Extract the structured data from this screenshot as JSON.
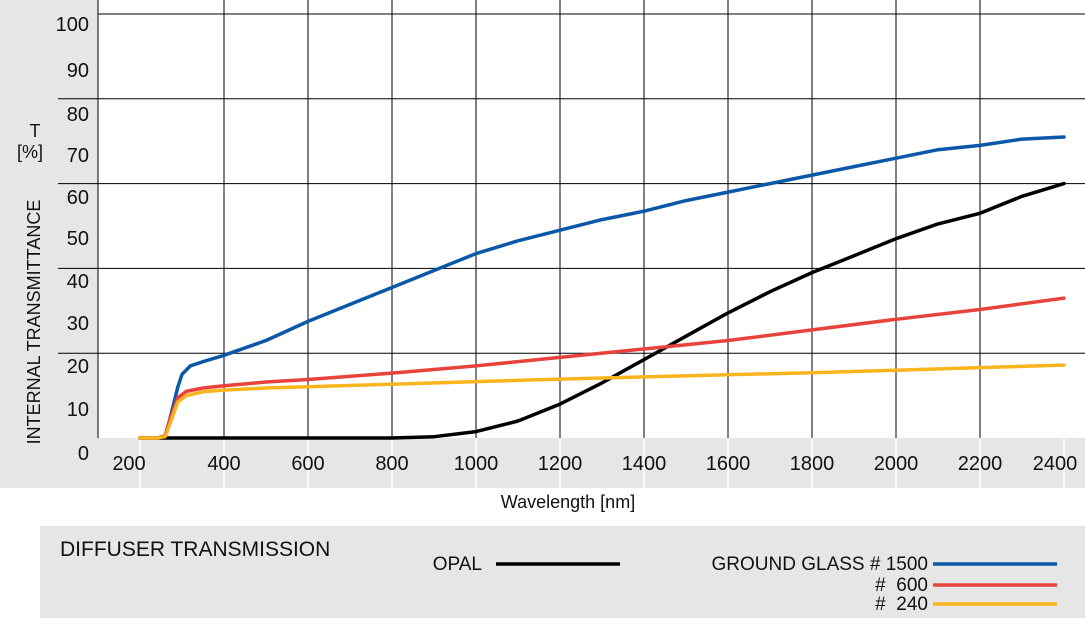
{
  "chart_data": {
    "type": "line",
    "xlabel": "Wavelength [nm]",
    "ylabel": "INTERNAL TRANSMITTANCE",
    "ylabel_symbol": "T",
    "ylabel_unit": "[%]",
    "xlim": [
      200,
      2400
    ],
    "ylim": [
      0,
      100
    ],
    "xticks": [
      200,
      400,
      600,
      800,
      1000,
      1200,
      1400,
      1600,
      1800,
      2000,
      2200,
      2400
    ],
    "yticks": [
      0,
      10,
      20,
      30,
      40,
      50,
      60,
      70,
      80,
      90,
      100
    ],
    "grid": true,
    "series": [
      {
        "name": "OPAL",
        "color": "#000000",
        "x": [
          200,
          250,
          300,
          400,
          600,
          800,
          900,
          1000,
          1100,
          1200,
          1300,
          1400,
          1500,
          1600,
          1700,
          1800,
          1900,
          2000,
          2100,
          2200,
          2300,
          2400
        ],
        "y": [
          0,
          0,
          0,
          0,
          0,
          0,
          0.3,
          1.5,
          4,
          8,
          13,
          18.5,
          24,
          29.5,
          34.5,
          39,
          43,
          47,
          50.5,
          53,
          57,
          60
        ]
      },
      {
        "name": "GROUND GLASS # 1500",
        "color": "#0b58a8",
        "x": [
          200,
          240,
          260,
          270,
          290,
          300,
          320,
          350,
          400,
          500,
          600,
          700,
          800,
          900,
          1000,
          1100,
          1200,
          1300,
          1400,
          1500,
          1600,
          1700,
          1800,
          1900,
          2000,
          2100,
          2200,
          2300,
          2400
        ],
        "y": [
          0,
          0,
          0.5,
          4,
          12,
          15,
          17,
          18,
          19.5,
          23,
          27.5,
          31.5,
          35.5,
          39.5,
          43.5,
          46.5,
          49,
          51.5,
          53.5,
          56,
          58,
          60,
          62,
          64,
          66,
          68,
          69,
          70.5,
          71
        ]
      },
      {
        "name": "# 600",
        "color": "#e8433a",
        "x": [
          200,
          240,
          260,
          270,
          290,
          310,
          350,
          400,
          500,
          600,
          800,
          1000,
          1200,
          1400,
          1600,
          1800,
          2000,
          2200,
          2400
        ],
        "y": [
          0,
          0,
          0.5,
          4,
          9.5,
          11,
          11.8,
          12.3,
          13.2,
          13.8,
          15.3,
          17,
          19,
          21,
          23,
          25.5,
          28,
          30.3,
          33
        ]
      },
      {
        "name": "# 240",
        "color": "#f9b51e",
        "x": [
          200,
          240,
          260,
          270,
          290,
          310,
          350,
          400,
          500,
          600,
          800,
          1000,
          1200,
          1400,
          1600,
          1800,
          2000,
          2200,
          2400
        ],
        "y": [
          0,
          0,
          0.3,
          3,
          8.5,
          10,
          10.9,
          11.3,
          11.8,
          12.1,
          12.7,
          13.3,
          13.9,
          14.4,
          14.9,
          15.4,
          16,
          16.6,
          17.2
        ]
      }
    ]
  },
  "legend": {
    "title": "DIFFUSER TRANSMISSION",
    "opal_label": "OPAL",
    "gg1500_label": "GROUND GLASS # 1500",
    "gg600_label": "#  600",
    "gg240_label": "#  240"
  },
  "colors": {
    "panel": "#e6e6e6",
    "grid": "#000000"
  }
}
